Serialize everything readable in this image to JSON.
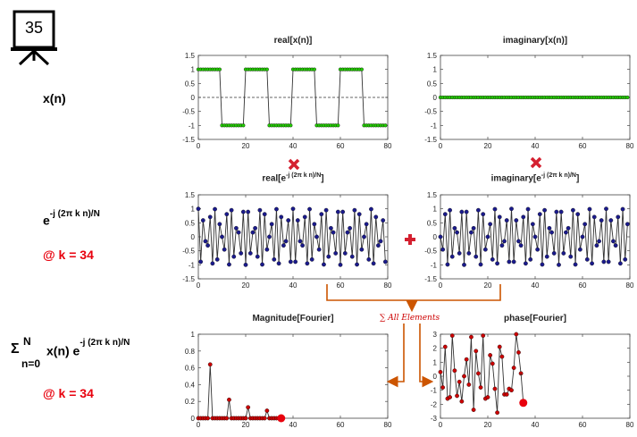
{
  "slide": {
    "number": "35"
  },
  "left_labels": {
    "xn": "x(n)",
    "exp_base": "e",
    "exp_power": "-j (2π k n)/N",
    "at_k1": "@ k = 34",
    "sum_symbol": "Σ",
    "sum_upper": "N",
    "sum_lower": "n=0",
    "sum_term_base": "x(n) e",
    "sum_term_power": "-j (2π k n)/N",
    "at_k2": "@ k = 34"
  },
  "annotation": {
    "sum_all": "∑ All Elements"
  },
  "colors": {
    "green_marker": "#22cc00",
    "blue_marker": "#1a1a8c",
    "red_marker": "#cc0000",
    "accent": "#cc5500",
    "operator_red": "#d42030"
  },
  "titles": {
    "p1": "real[x(n)]",
    "p2": "imaginary[x(n)]",
    "p3_base": "real[e",
    "p3_power": "-j (2π k n)/N",
    "p3_end": "]",
    "p4_base": "imaginary[e",
    "p4_power": "-j (2π k n)/N",
    "p4_end": "]",
    "p5": "Magnitude[Fourier]",
    "p6": "phase[Fourier]"
  },
  "chart_data": [
    {
      "id": "p1",
      "type": "scatter",
      "title": "real[x(n)]",
      "marker": "green",
      "xlim": [
        0,
        80
      ],
      "ylim": [
        -1.5,
        1.5
      ],
      "xticks": [
        0,
        20,
        40,
        60,
        80
      ],
      "yticks": [
        1.5,
        1,
        0.5,
        0,
        -0.5,
        -1,
        -1.5
      ],
      "zero_line": true,
      "description": "square wave: +1 for n mod 20 in 0..9, -1 for n mod 20 in 10..19, n=0..79"
    },
    {
      "id": "p2",
      "type": "scatter",
      "title": "imaginary[x(n)]",
      "marker": "green",
      "xlim": [
        0,
        80
      ],
      "ylim": [
        -1.5,
        1.5
      ],
      "xticks": [
        0,
        20,
        40,
        60,
        80
      ],
      "yticks": [
        1.5,
        1,
        0.5,
        0,
        -0.5,
        -1,
        -1.5
      ],
      "zero_line": true,
      "description": "all zeros, n=0..79"
    },
    {
      "id": "p3",
      "type": "line",
      "title": "real[e^-j(2πkn)/N]",
      "marker": "blue",
      "xlim": [
        0,
        80
      ],
      "ylim": [
        -1.5,
        1.5
      ],
      "xticks": [
        0,
        20,
        40,
        60,
        80
      ],
      "yticks": [
        1.5,
        1,
        0.5,
        0,
        -0.5,
        -1,
        -1.5
      ],
      "k": 34,
      "N": 80,
      "description": "cos(2π·34·n/80), n=0..79"
    },
    {
      "id": "p4",
      "type": "line",
      "title": "imaginary[e^-j(2πkn)/N]",
      "marker": "blue",
      "xlim": [
        0,
        80
      ],
      "ylim": [
        -1.5,
        1.5
      ],
      "xticks": [
        0,
        20,
        40,
        60,
        80
      ],
      "yticks": [
        1.5,
        1,
        0.5,
        0,
        -0.5,
        -1,
        -1.5
      ],
      "k": 34,
      "N": 80,
      "description": "-sin(2π·34·n/80), n=0..79"
    },
    {
      "id": "p5",
      "type": "line",
      "title": "Magnitude[Fourier]",
      "marker": "red",
      "xlim": [
        0,
        80
      ],
      "ylim": [
        0,
        1
      ],
      "xticks": [
        0,
        20,
        40,
        60,
        80
      ],
      "yticks": [
        1,
        0.8,
        0.6,
        0.4,
        0.2,
        0
      ],
      "x": [
        0,
        1,
        2,
        3,
        4,
        5,
        6,
        7,
        8,
        9,
        10,
        11,
        12,
        13,
        14,
        15,
        16,
        17,
        18,
        19,
        20,
        21,
        22,
        23,
        24,
        25,
        26,
        27,
        28,
        29,
        30,
        31,
        32,
        33,
        34
      ],
      "y": [
        0,
        0,
        0,
        0,
        0,
        0.64,
        0,
        0,
        0,
        0,
        0,
        0,
        0,
        0.22,
        0,
        0,
        0,
        0,
        0,
        0,
        0,
        0.13,
        0,
        0,
        0,
        0,
        0,
        0,
        0,
        0.09,
        0,
        0,
        0,
        0,
        0
      ],
      "highlight_x": 35,
      "highlight_y": 0
    },
    {
      "id": "p6",
      "type": "line",
      "title": "phase[Fourier]",
      "marker": "red",
      "xlim": [
        0,
        80
      ],
      "ylim": [
        -3,
        3
      ],
      "xticks": [
        0,
        20,
        40,
        60,
        80
      ],
      "yticks": [
        3,
        2,
        1,
        0,
        -1,
        -2,
        -3
      ],
      "x": [
        0,
        1,
        2,
        3,
        4,
        5,
        6,
        7,
        8,
        9,
        10,
        11,
        12,
        13,
        14,
        15,
        16,
        17,
        18,
        19,
        20,
        21,
        22,
        23,
        24,
        25,
        26,
        27,
        28,
        29,
        30,
        31,
        32,
        33,
        34
      ],
      "y": [
        0.3,
        -0.8,
        2.1,
        -1.6,
        -1.5,
        2.9,
        0.4,
        -1.4,
        -0.4,
        -1.8,
        0.0,
        1.2,
        -0.6,
        2.8,
        -2.4,
        1.8,
        0.2,
        -0.8,
        2.9,
        -1.6,
        -1.5,
        1.5,
        0.9,
        -0.9,
        -2.6,
        2.1,
        1.4,
        -1.3,
        -1.3,
        -0.9,
        -1.0,
        0.6,
        3.0,
        1.7,
        0.2
      ],
      "highlight_x": 35,
      "highlight_y": -1.9
    }
  ]
}
